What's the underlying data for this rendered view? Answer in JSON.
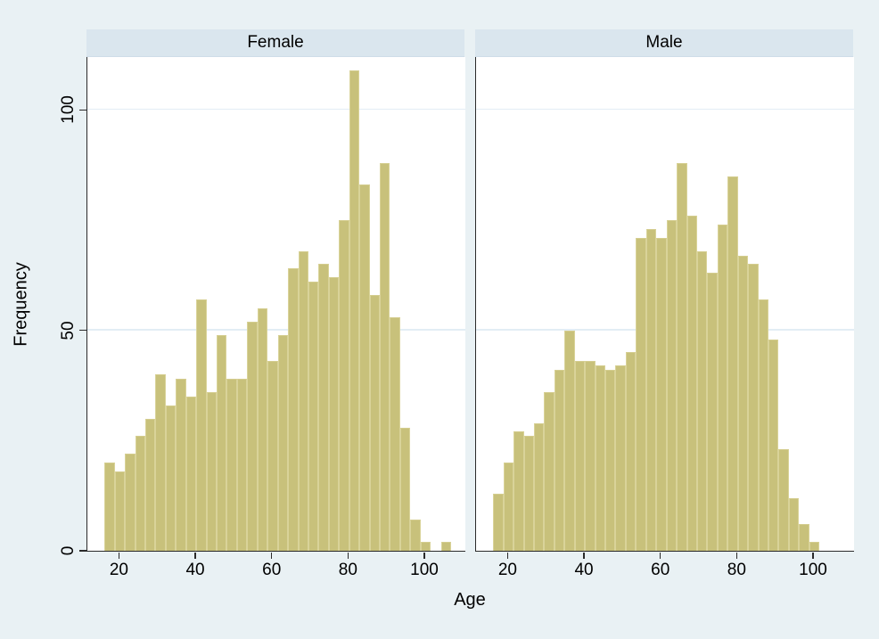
{
  "figure": {
    "xlabel": "Age",
    "ylabel": "Frequency",
    "colors": {
      "background": "#e9f1f4",
      "plot_background": "#ffffff",
      "panel_header_fill": "#dae6ee",
      "bar_fill": "#c8c17b",
      "bar_edge": "#d9d399",
      "gridline": "#e2edf5",
      "axis_line": "#2a2a2a"
    }
  },
  "chart_data": [
    {
      "type": "bar",
      "subtype": "histogram",
      "title": "Female",
      "xlabel": "Age",
      "ylabel": "Frequency",
      "bin_start": 16,
      "bin_width": 2.67,
      "frequencies": [
        20,
        18,
        22,
        26,
        30,
        40,
        33,
        39,
        35,
        57,
        36,
        49,
        39,
        39,
        52,
        55,
        43,
        49,
        64,
        68,
        61,
        65,
        62,
        75,
        109,
        83,
        58,
        88,
        53,
        28,
        7,
        2,
        0,
        2
      ],
      "xlim": [
        11.5,
        110.5
      ],
      "ylim": [
        0,
        112
      ],
      "xticks": [
        20,
        40,
        60,
        80,
        100
      ],
      "yticks": [
        0,
        50,
        100
      ],
      "grid": true,
      "legend_position": "none"
    },
    {
      "type": "bar",
      "subtype": "histogram",
      "title": "Male",
      "xlabel": "Age",
      "ylabel": "Frequency",
      "bin_start": 16,
      "bin_width": 2.67,
      "frequencies": [
        13,
        20,
        27,
        26,
        29,
        36,
        41,
        50,
        43,
        43,
        42,
        41,
        42,
        45,
        71,
        73,
        71,
        75,
        88,
        76,
        68,
        63,
        74,
        85,
        67,
        65,
        57,
        48,
        23,
        12,
        6,
        2
      ],
      "xlim": [
        11.5,
        110.5
      ],
      "ylim": [
        0,
        112
      ],
      "xticks": [
        20,
        40,
        60,
        80,
        100
      ],
      "yticks": [
        0,
        50,
        100
      ],
      "grid": true,
      "legend_position": "none"
    }
  ]
}
